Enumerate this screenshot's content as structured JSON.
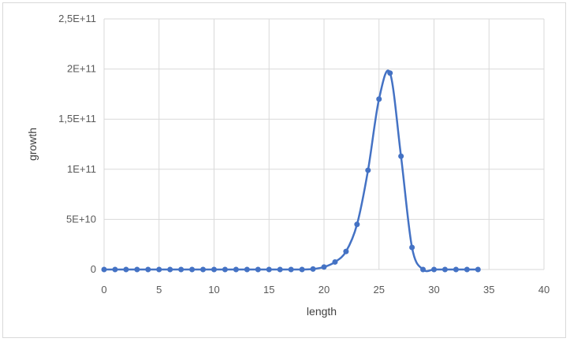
{
  "chart_data": {
    "type": "scatter",
    "xlabel": "length",
    "ylabel": "growth",
    "xlim": [
      0,
      40
    ],
    "ylim": [
      0,
      250000000000
    ],
    "x_ticks": [
      "0",
      "5",
      "10",
      "15",
      "20",
      "25",
      "30",
      "35",
      "40"
    ],
    "y_ticks": [
      "0",
      "5E+10",
      "1E+11",
      "1,5E+11",
      "2E+11",
      "2,5E+11"
    ],
    "grid": true,
    "legend": "none",
    "series": [
      {
        "color": "#4472c4",
        "smooth": true,
        "markers": true,
        "x": [
          0,
          1,
          2,
          3,
          4,
          5,
          6,
          7,
          8,
          9,
          10,
          11,
          12,
          13,
          14,
          15,
          16,
          17,
          18,
          19,
          20,
          21,
          22,
          23,
          24,
          25,
          26,
          27,
          28,
          29,
          30,
          31,
          32,
          33,
          34
        ],
        "y": [
          0,
          0,
          0,
          0,
          0,
          0,
          0,
          0,
          0,
          0,
          0,
          0,
          0,
          0,
          0,
          0,
          0,
          0,
          0,
          500000000,
          2500000000,
          7500000000,
          18000000000,
          45000000000,
          99000000000,
          170000000000,
          196000000000,
          113000000000,
          22000000000,
          0,
          0,
          0,
          0,
          0,
          0
        ]
      }
    ]
  }
}
